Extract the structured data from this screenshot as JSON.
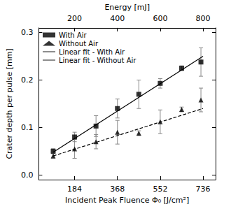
{
  "chart_data": {
    "type": "scatter",
    "x_label": "Incident Peak Fluence Φ₀ [J/cm²]",
    "x2_label": "Energy [mJ]",
    "y_label": "Crater depth per pulse [mm]",
    "xlim": [
      30,
      790
    ],
    "xticks": [
      184,
      368,
      552,
      736
    ],
    "x2lim": [
      32.6,
      858.7
    ],
    "x2ticks": [
      200,
      400,
      600,
      800
    ],
    "ylim": [
      -0.01,
      0.31
    ],
    "yticks": [
      {
        "value": 0,
        "label": "0.0"
      },
      {
        "value": 0.1,
        "label": "0.1"
      },
      {
        "value": 0.2,
        "label": "0.2"
      },
      {
        "value": 0.3,
        "label": "0.3"
      }
    ],
    "grid": false,
    "legend": "upper left",
    "series": [
      {
        "name": "With Air",
        "type": "scatter",
        "marker": "square",
        "color": "#000000",
        "x": [
          92,
          184,
          276,
          368,
          460,
          552,
          644,
          727
        ],
        "values": [
          0.05,
          0.08,
          0.103,
          0.14,
          0.17,
          0.193,
          0.225,
          0.238
        ],
        "errors": [
          0.005,
          0.01,
          0.022,
          0.02,
          0.03,
          0.01,
          0.005,
          0.03
        ]
      },
      {
        "name": "Without Air",
        "type": "scatter",
        "marker": "triangle",
        "color": "#000000",
        "x": [
          92,
          184,
          276,
          368,
          460,
          552,
          644,
          727
        ],
        "values": [
          0.04,
          0.055,
          0.07,
          0.09,
          0.088,
          0.112,
          0.138,
          0.158
        ],
        "errors": [
          0.005,
          0.02,
          0.015,
          0.025,
          0.005,
          0.025,
          0.005,
          0.025
        ]
      },
      {
        "name": "Linear fit - With Air",
        "type": "line",
        "line_style": "solid",
        "color": "#000000",
        "x": [
          92,
          736
        ],
        "values": [
          0.048,
          0.25
        ]
      },
      {
        "name": "Linear fit - Without Air",
        "type": "line",
        "line_style": "dashed",
        "color": "#000000",
        "x": [
          92,
          736
        ],
        "values": [
          0.04,
          0.14
        ]
      }
    ]
  }
}
